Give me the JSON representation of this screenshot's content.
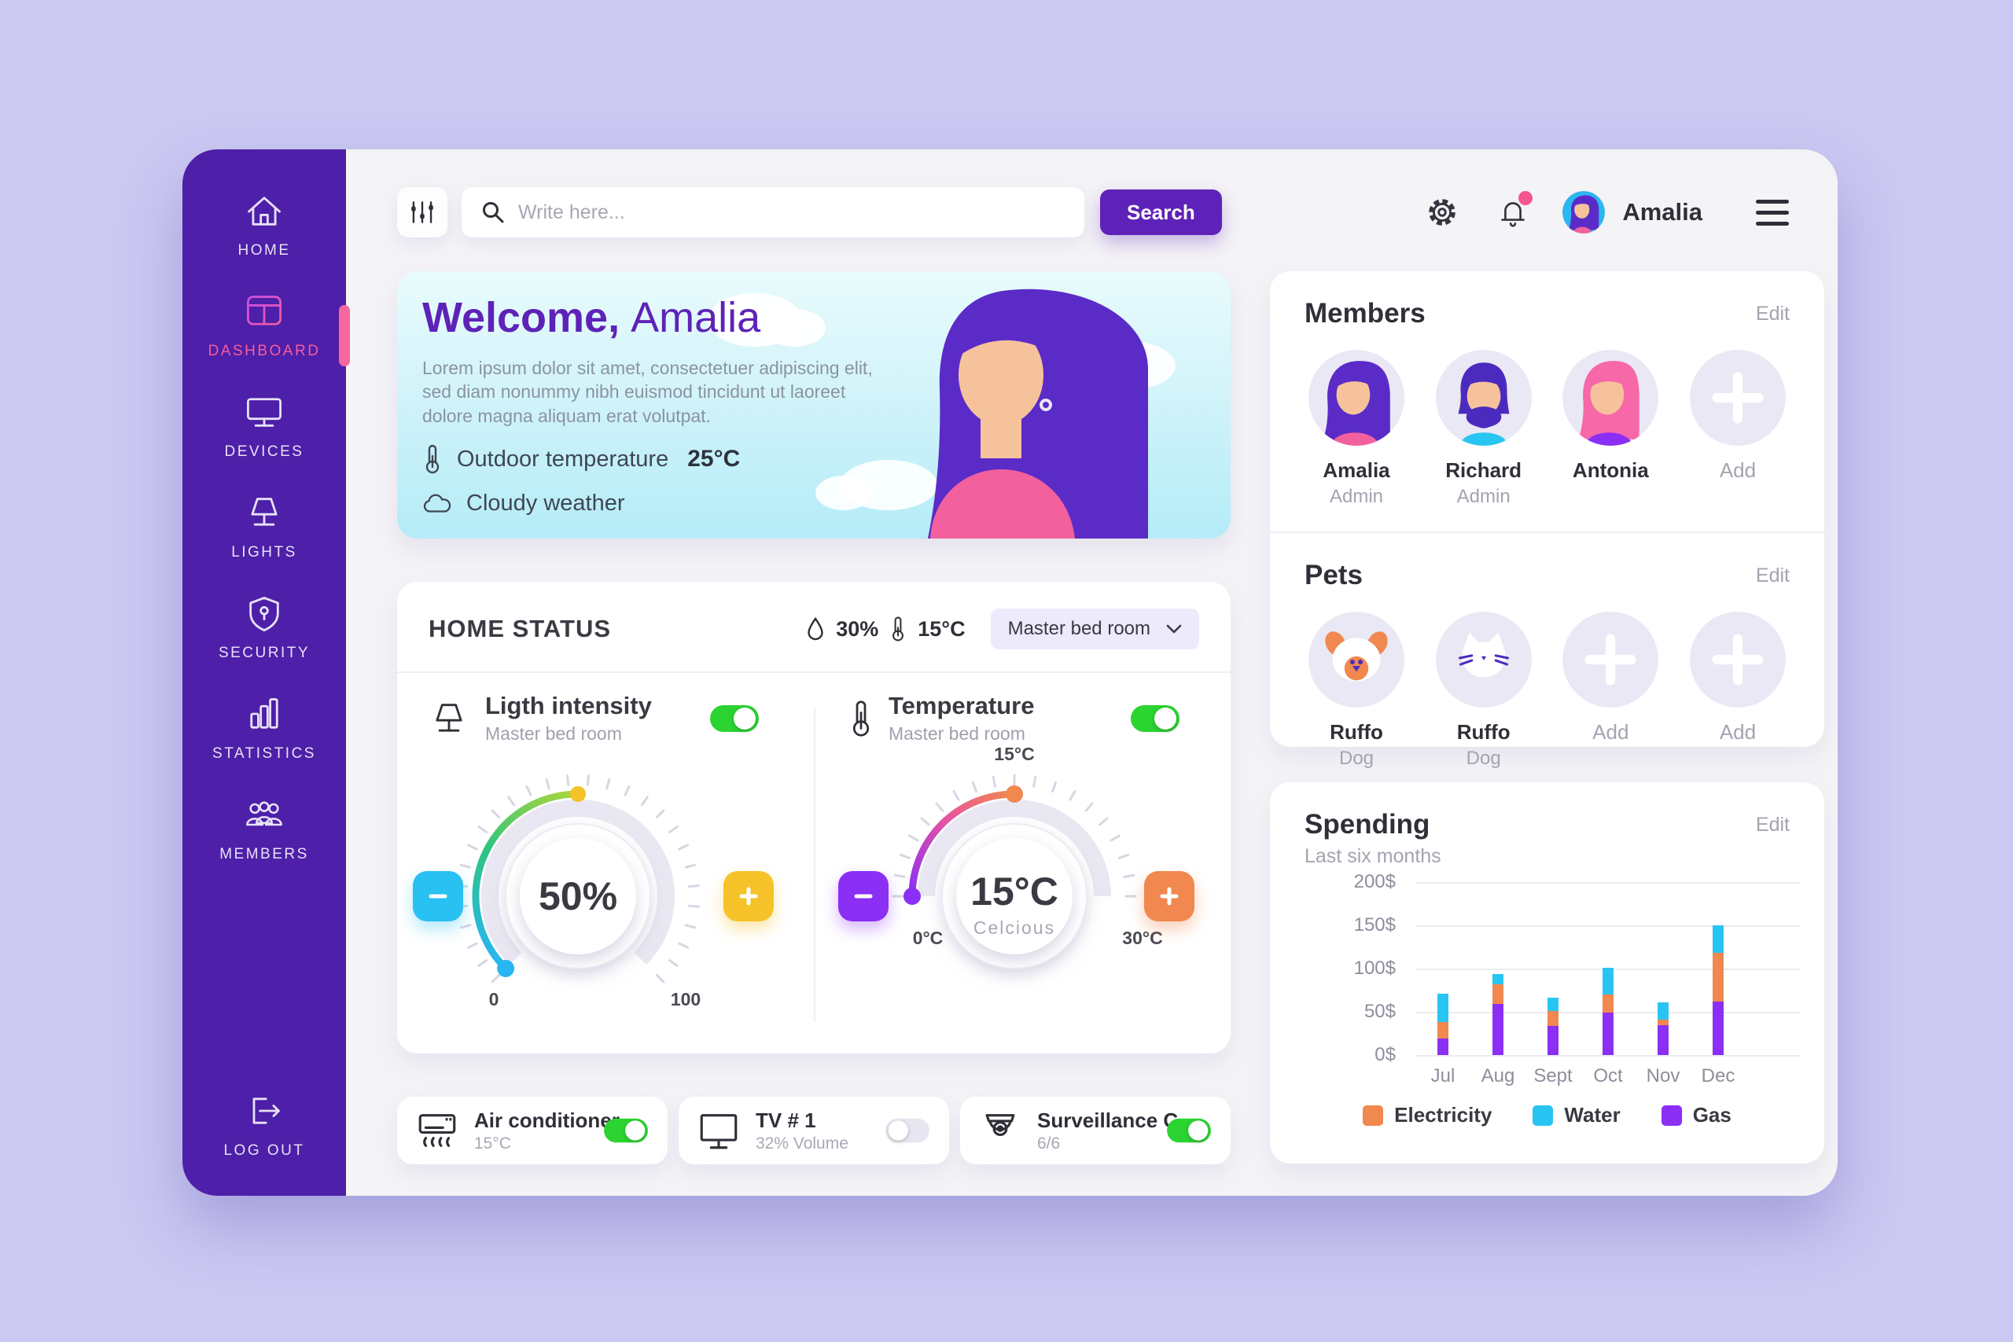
{
  "topbar": {
    "search_placeholder": "Write here...",
    "search_button": "Search",
    "username": "Amalia",
    "icons": [
      "filter-icon",
      "search-icon",
      "gear-icon",
      "bell-icon",
      "hamburger-icon"
    ]
  },
  "sidebar": {
    "items": [
      {
        "label": "HOME",
        "icon": "home-icon"
      },
      {
        "label": "DASHBOARD",
        "icon": "dashboard-icon",
        "active": true
      },
      {
        "label": "DEVICES",
        "icon": "monitor-icon"
      },
      {
        "label": "LIGHTS",
        "icon": "lamp-icon"
      },
      {
        "label": "SECURITY",
        "icon": "shield-icon"
      },
      {
        "label": "STATISTICS",
        "icon": "bar-chart-icon"
      },
      {
        "label": "MEMBERS",
        "icon": "people-icon"
      }
    ],
    "logout": {
      "label": "LOG OUT",
      "icon": "logout-icon"
    }
  },
  "welcome": {
    "title_bold": "Welcome,",
    "title_name": "Amalia",
    "body": "Lorem ipsum dolor sit amet, consectetuer adipiscing elit, sed diam nonummy nibh euismod tincidunt ut laoreet dolore magna aliquam erat volutpat.",
    "outdoor_label": "Outdoor temperature",
    "outdoor_value": "25°C",
    "weather_label": "Cloudy weather",
    "icons": [
      "thermometer-icon",
      "cloud-icon"
    ]
  },
  "home_status": {
    "title": "HOME STATUS",
    "humidity": "30%",
    "temperature": "15°C",
    "room_selector": "Master bed room",
    "light": {
      "title": "Ligth intensity",
      "subtitle": "Master bed room",
      "value": "50%",
      "min": "0",
      "max": "100",
      "on": true
    },
    "temp": {
      "title": "Temperature",
      "subtitle": "Master bed room",
      "value": "15°C",
      "unit": "Celcious",
      "top_label": "15°C",
      "min": "0°C",
      "max": "30°C",
      "on": true
    }
  },
  "devices": {
    "items": [
      {
        "name": "Air conditioner",
        "info": "15°C",
        "on": true,
        "icon": "air-conditioner-icon"
      },
      {
        "name": "TV # 1",
        "info": "32% Volume",
        "on": false,
        "icon": "tv-icon"
      },
      {
        "name": "Surveillance C.",
        "info": "6/6",
        "on": true,
        "icon": "camera-icon"
      }
    ]
  },
  "members": {
    "title": "Members",
    "edit": "Edit",
    "people": [
      {
        "name": "Amalia",
        "role": "Admin"
      },
      {
        "name": "Richard",
        "role": "Admin"
      },
      {
        "name": "Antonia",
        "role": ""
      },
      {
        "name": "Add",
        "role": ""
      }
    ]
  },
  "pets": {
    "title": "Pets",
    "edit": "Edit",
    "list": [
      {
        "name": "Ruffo",
        "type": "Dog"
      },
      {
        "name": "Ruffo",
        "type": "Dog"
      },
      {
        "name": "Add",
        "type": ""
      },
      {
        "name": "Add",
        "type": ""
      }
    ]
  },
  "spending": {
    "title": "Spending",
    "subtitle": "Last six months",
    "edit": "Edit"
  },
  "chart_data": {
    "type": "bar",
    "stacked": true,
    "title": "Spending",
    "subtitle": "Last six months",
    "categories": [
      "Jul",
      "Aug",
      "Sept",
      "Oct",
      "Nov",
      "Dec"
    ],
    "series": [
      {
        "name": "Gas",
        "color": "#8b2ff5",
        "values": [
          19,
          59,
          34,
          49,
          35,
          62
        ]
      },
      {
        "name": "Electricity",
        "color": "#f0884f",
        "values": [
          19,
          23,
          17,
          21,
          6,
          56
        ]
      },
      {
        "name": "Water",
        "color": "#29c5f2",
        "values": [
          33,
          12,
          15,
          31,
          20,
          32
        ]
      }
    ],
    "stack_order": "bottom-to-top: Gas, Electricity, Water",
    "ylim": [
      0,
      200
    ],
    "ytick_labels": [
      "200$",
      "150$",
      "100$",
      "50$",
      "0$"
    ],
    "grid": true,
    "legend_position": "bottom",
    "legend": [
      {
        "label": "Electricity",
        "color": "#f0884f"
      },
      {
        "label": "Water",
        "color": "#29c5f2"
      },
      {
        "label": "Gas",
        "color": "#8b2ff5"
      }
    ]
  },
  "colors": {
    "page_background": "#cbc9f2",
    "sidebar": "#4e1fa8",
    "accent_pink": "#f5689e",
    "accent_purple": "#5e22b8",
    "toggle_on_green": "#2bd431",
    "gauge_cyan": "#29c0f2",
    "gauge_yellow": "#f5c329",
    "gauge_violet": "#8b2ff5",
    "gauge_orange": "#f0884f"
  }
}
